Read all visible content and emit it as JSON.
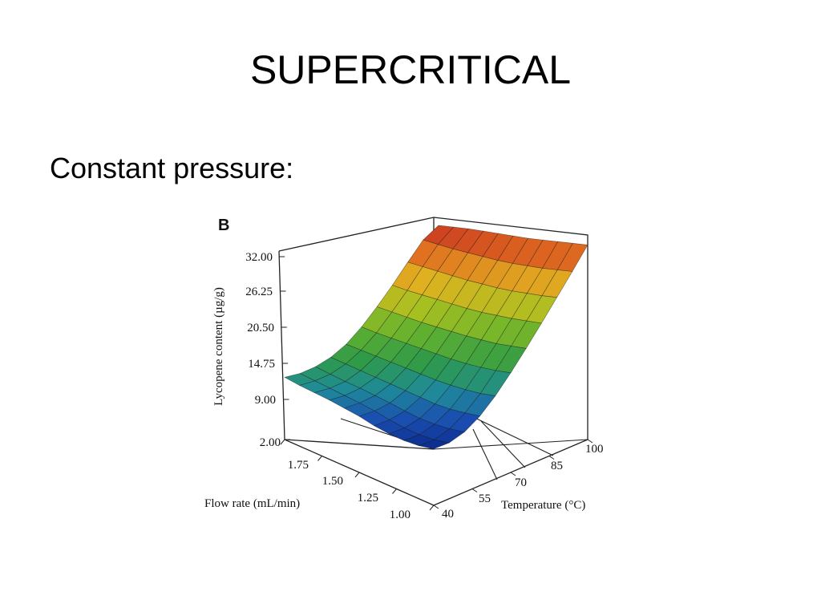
{
  "slide": {
    "title": "SUPERCRITICAL",
    "subtitle": "Constant pressure:"
  },
  "chart_data": {
    "type": "surface",
    "panel_label": "B",
    "zlabel": "Lycopene content (µg/g)",
    "xlabel": "Flow rate (mL/min)",
    "ylabel": "Temperature (°C)",
    "z_ticks": [
      "32.00",
      "26.25",
      "20.50",
      "14.75",
      "9.00"
    ],
    "x_ticks": [
      "2.00",
      "1.75",
      "1.50",
      "1.25",
      "1.00"
    ],
    "y_ticks": [
      "40",
      "55",
      "70",
      "85",
      "100"
    ],
    "zlim": [
      3.25,
      32.0
    ],
    "x_range": [
      1.0,
      2.0
    ],
    "y_range": [
      40,
      100
    ],
    "grid": {
      "flow_rate": [
        1.0,
        1.1,
        1.2,
        1.3,
        1.4,
        1.5,
        1.6,
        1.7,
        1.8,
        1.9,
        2.0
      ],
      "temperature": [
        40,
        46,
        52,
        58,
        64,
        70,
        76,
        82,
        88,
        94,
        100
      ],
      "lycopene_rows_by_temperature": [
        [
          3.3,
          3.6,
          4.2,
          5.0,
          6.0,
          7.2,
          8.2,
          9.2,
          10.1,
          11.0,
          12.0
        ],
        [
          4.0,
          4.3,
          4.9,
          5.7,
          6.7,
          7.8,
          8.8,
          9.7,
          10.6,
          11.5,
          12.4
        ],
        [
          5.4,
          5.7,
          6.2,
          6.9,
          7.8,
          8.8,
          9.7,
          10.6,
          11.4,
          12.3,
          13.2
        ],
        [
          7.5,
          7.8,
          8.2,
          8.8,
          9.6,
          10.4,
          11.2,
          12.0,
          12.8,
          13.6,
          14.4
        ],
        [
          10.2,
          10.4,
          10.8,
          11.3,
          11.9,
          12.6,
          13.3,
          14.0,
          14.7,
          15.4,
          16.1
        ],
        [
          13.3,
          13.5,
          13.8,
          14.2,
          14.7,
          15.3,
          15.9,
          16.5,
          17.1,
          17.7,
          18.4
        ],
        [
          16.6,
          16.8,
          17.0,
          17.4,
          17.8,
          18.3,
          18.8,
          19.3,
          19.9,
          20.5,
          21.1
        ],
        [
          20.0,
          20.2,
          20.4,
          20.7,
          21.0,
          21.4,
          21.9,
          22.4,
          22.9,
          23.4,
          24.0
        ],
        [
          23.5,
          23.6,
          23.8,
          24.0,
          24.3,
          24.7,
          25.1,
          25.6,
          26.1,
          26.6,
          27.1
        ],
        [
          27.0,
          27.1,
          27.2,
          27.4,
          27.6,
          27.9,
          28.3,
          28.7,
          29.1,
          29.6,
          30.1
        ],
        [
          30.6,
          30.7,
          30.8,
          30.9,
          31.0,
          31.2,
          31.4,
          31.6,
          31.8,
          31.9,
          32.0
        ]
      ]
    },
    "colormap": [
      "#0a2a8c",
      "#1a4fb0",
      "#1f8a9a",
      "#2e9a4a",
      "#5fb030",
      "#a8c020",
      "#e0b020",
      "#e07020",
      "#c83020"
    ]
  }
}
